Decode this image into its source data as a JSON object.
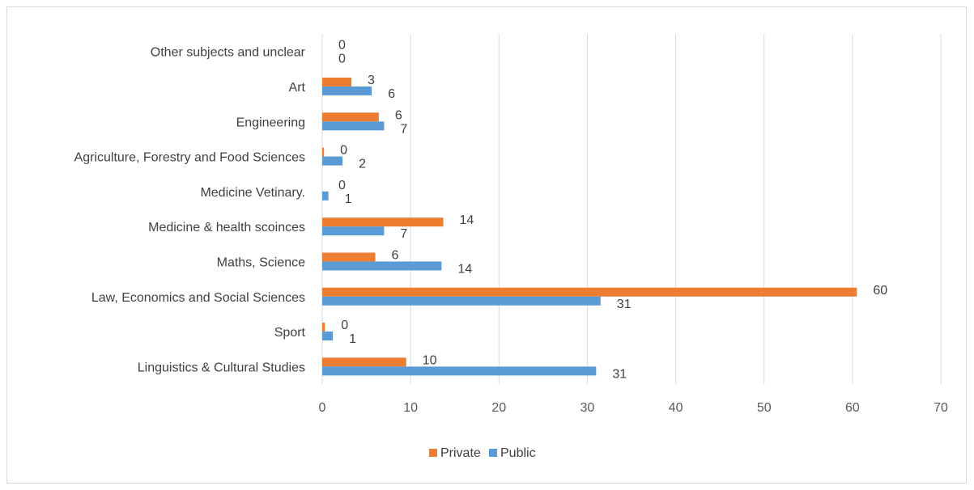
{
  "chart_data": {
    "type": "bar",
    "orientation": "horizontal",
    "categories": [
      "Linguistics & Cultural Studies",
      "Sport",
      "Law, Economics and Social Sciences",
      "Maths, Science",
      "Medicine & health scoinces",
      "Medicine Vetinary.",
      "Agriculture, Forestry and Food Sciences",
      "Engineering",
      "Art",
      "Other subjects and unclear"
    ],
    "series": [
      {
        "name": "Private",
        "color": "#ED7D31",
        "values": [
          9.5,
          0.3,
          60.5,
          6.0,
          13.7,
          0.0,
          0.2,
          6.4,
          3.3,
          0.0
        ],
        "labels": [
          "10",
          "0",
          "60",
          "6",
          "14",
          "0",
          "0",
          "6",
          "3",
          "0"
        ]
      },
      {
        "name": "Public",
        "color": "#5B9BD5",
        "values": [
          31.0,
          1.2,
          31.5,
          13.5,
          7.0,
          0.7,
          2.3,
          7.0,
          5.6,
          0.0
        ],
        "labels": [
          "31",
          "1",
          "31",
          "14",
          "7",
          "1",
          "2",
          "7",
          "6",
          "0"
        ]
      }
    ],
    "xlim": [
      0,
      70
    ],
    "xticks": [
      "0",
      "10",
      "20",
      "30",
      "40",
      "50",
      "60",
      "70"
    ],
    "grid": "vertical",
    "legend_position": "bottom"
  }
}
